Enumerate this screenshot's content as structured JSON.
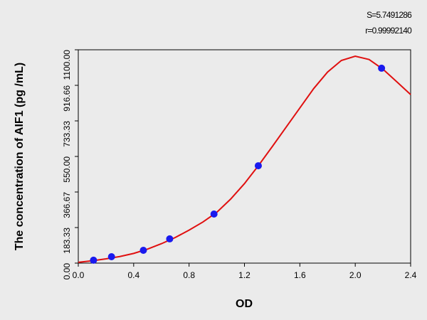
{
  "chart_data": {
    "type": "scatter",
    "annotations": [
      "S=5.7491286",
      "r=0.99992140"
    ],
    "x_label": "OD",
    "y_label": "The concentration of AIF1 (pg /mL)",
    "xlim": [
      0,
      2.4
    ],
    "ylim": [
      0,
      1100
    ],
    "xticks": [
      {
        "value": 0,
        "label": "0.0"
      },
      {
        "value": 0.4,
        "label": "0.4"
      },
      {
        "value": 0.8,
        "label": "0.8"
      },
      {
        "value": 1.2,
        "label": "1.2"
      },
      {
        "value": 1.6,
        "label": "1.6"
      },
      {
        "value": 2.0,
        "label": "2.0"
      },
      {
        "value": 2.4,
        "label": "2.4"
      }
    ],
    "yticks": [
      {
        "value": 0,
        "label": "0.00"
      },
      {
        "value": 183.33,
        "label": "183.33"
      },
      {
        "value": 366.67,
        "label": "366.67"
      },
      {
        "value": 550,
        "label": "550.00"
      },
      {
        "value": 733.33,
        "label": "733.33"
      },
      {
        "value": 916.66,
        "label": "916.66"
      },
      {
        "value": 1100,
        "label": "1100.00"
      }
    ],
    "points": {
      "color": "#1a1aee",
      "x": [
        0.11,
        0.24,
        0.47,
        0.66,
        0.98,
        1.3,
        2.19
      ],
      "values": [
        15,
        33,
        66,
        125,
        253,
        502,
        1005
      ]
    },
    "curve": {
      "color": "#e01010",
      "x": [
        0,
        0.1,
        0.2,
        0.3,
        0.4,
        0.5,
        0.6,
        0.7,
        0.8,
        0.9,
        1.0,
        1.1,
        1.2,
        1.3,
        1.4,
        1.5,
        1.6,
        1.7,
        1.8,
        1.9,
        2.0,
        2.1,
        2.2,
        2.3,
        2.4
      ],
      "values": [
        4,
        12,
        22,
        34,
        50,
        72,
        100,
        132,
        170,
        212,
        262,
        330,
        410,
        502,
        600,
        700,
        800,
        900,
        985,
        1045,
        1067,
        1050,
        1000,
        935,
        869
      ]
    }
  }
}
